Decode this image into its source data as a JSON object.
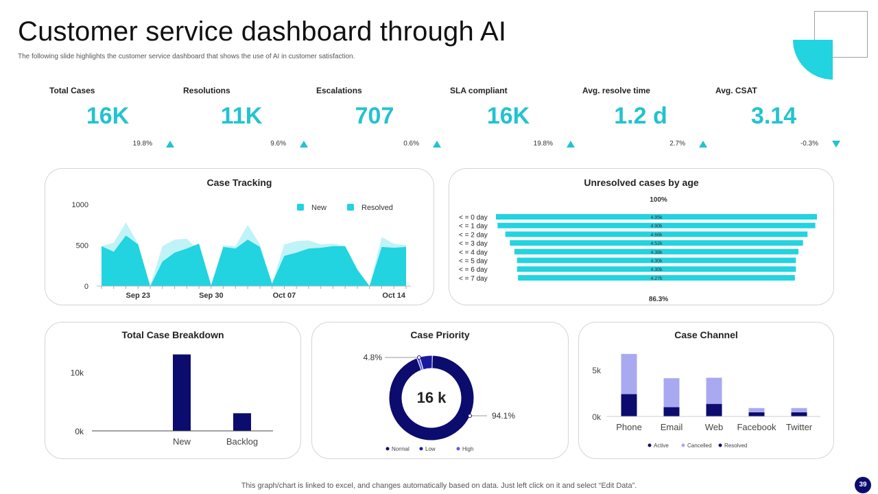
{
  "header": {
    "title": "Customer service dashboard through AI",
    "subtitle": "The following slide highlights the customer service dashboard that shows the use of AI in customer satisfaction."
  },
  "colors": {
    "accent": "#22c3cf",
    "accent_light": "#bff3f7",
    "navy": "#0c0c6e",
    "lavender": "#a9a9f2",
    "blue": "#5a5aee"
  },
  "kpis": [
    {
      "label": "Total Cases",
      "value": "16K",
      "change": "19.8%",
      "direction": "up"
    },
    {
      "label": "Resolutions",
      "value": "11K",
      "change": "9.6%",
      "direction": "up"
    },
    {
      "label": "Escalations",
      "value": "707",
      "change": "0.6%",
      "direction": "up"
    },
    {
      "label": "SLA compliant",
      "value": "16K",
      "change": "19.8%",
      "direction": "up"
    },
    {
      "label": "Avg. resolve time",
      "value": "1.2 d",
      "change": "2.7%",
      "direction": "up"
    },
    {
      "label": "Avg. CSAT",
      "value": "3.14",
      "change": "-0.3%",
      "direction": "down"
    }
  ],
  "chart_data": [
    {
      "id": "case_tracking",
      "type": "area",
      "title": "Case Tracking",
      "x_ticks": [
        "Sep 23",
        "Sep 30",
        "Oct 07",
        "Oct 14"
      ],
      "x_tick_index": [
        3,
        9,
        15,
        24
      ],
      "ylim": [
        0,
        1000
      ],
      "y_ticks": [
        0,
        500,
        1000
      ],
      "series": [
        {
          "name": "New",
          "values": [
            490,
            530,
            780,
            520,
            0,
            490,
            570,
            580,
            430,
            10,
            500,
            490,
            750,
            510,
            30,
            510,
            550,
            560,
            510,
            520,
            490,
            210,
            0,
            600,
            520,
            500
          ]
        },
        {
          "name": "Resolved",
          "values": [
            490,
            420,
            620,
            510,
            0,
            300,
            410,
            460,
            520,
            10,
            480,
            460,
            570,
            480,
            30,
            370,
            410,
            460,
            470,
            490,
            490,
            200,
            0,
            480,
            470,
            480
          ]
        }
      ]
    },
    {
      "id": "unresolved_by_age",
      "type": "bar",
      "title": "Unresolved cases by age",
      "top_label": "100%",
      "bottom_label": "86.3%",
      "categories": [
        "< = 0 day",
        "< = 1 day",
        "< = 2 day",
        "< = 3 day",
        "< = 4 day",
        "< = 5 day",
        "< = 6 day",
        "< = 7 day"
      ],
      "values": [
        4.95,
        4.9,
        4.66,
        4.52,
        4.38,
        4.3,
        4.3,
        4.27
      ],
      "value_labels": [
        "4.95k",
        "4.90k",
        "4.66k",
        "4.52k",
        "4.38k",
        "4.30k",
        "4.30k",
        "4.27k"
      ]
    },
    {
      "id": "total_case_breakdown",
      "type": "bar",
      "title": "Total Case Breakdown",
      "categories": [
        "New",
        "Backlog"
      ],
      "values": [
        13000,
        3000
      ],
      "y_ticks": [
        {
          "value": 0,
          "label": "0k"
        },
        {
          "value": 10000,
          "label": "10k"
        }
      ],
      "ylim": [
        0,
        14000
      ]
    },
    {
      "id": "case_priority",
      "type": "pie",
      "title": "Case Priority",
      "center_label": "16 k",
      "slices": [
        {
          "name": "Normal",
          "value": 94.1,
          "label": "94.1%"
        },
        {
          "name": "Low",
          "value": 4.8,
          "label": "4.8%"
        },
        {
          "name": "High",
          "value": 1.1,
          "label": ""
        }
      ]
    },
    {
      "id": "case_channel",
      "type": "bar",
      "title": "Case Channel",
      "categories": [
        "Phone",
        "Email",
        "Web",
        "Facebook",
        "Twitter"
      ],
      "series": [
        {
          "name": "Active",
          "values": [
            2400,
            1000,
            1350,
            450,
            450
          ]
        },
        {
          "name": "Cancelled",
          "values": [
            4300,
            3100,
            2800,
            450,
            450
          ]
        },
        {
          "name": "Resolved",
          "values": [
            0,
            0,
            0,
            0,
            0
          ]
        }
      ],
      "ylim": [
        0,
        7500
      ],
      "y_ticks": [
        {
          "value": 0,
          "label": "0k"
        },
        {
          "value": 5000,
          "label": "5k"
        }
      ]
    }
  ],
  "footer": {
    "note": "This graph/chart is linked to excel,  and changes automatically based on data. Just left click on it and select “Edit Data”.",
    "page_number": "39"
  }
}
